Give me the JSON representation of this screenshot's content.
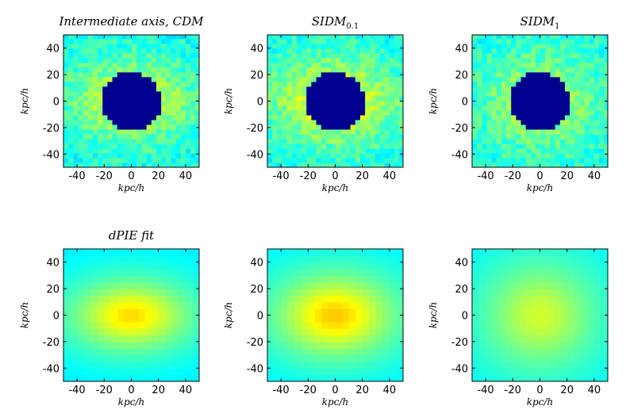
{
  "chart_data": [
    {
      "type": "heatmap",
      "title": "Intermediate axis, CDM",
      "title_sub": "",
      "xlabel": "kpc/h",
      "ylabel": "kpc/h",
      "xlim": [
        -50,
        50
      ],
      "ylim": [
        -50,
        50
      ],
      "xticks": [
        -40,
        -20,
        0,
        20,
        40
      ],
      "yticks": [
        40,
        20,
        0,
        -20,
        -40
      ],
      "colormap": "jet",
      "masked_core_radius": 22,
      "masked_color": "#00008f",
      "noise": true,
      "ellipticity": 0.35,
      "peak_level": 0.62,
      "edge_level": 0.33
    },
    {
      "type": "heatmap",
      "title": "SIDM",
      "title_sub": "0.1",
      "xlabel": "kpc/h",
      "ylabel": "kpc/h",
      "xlim": [
        -50,
        50
      ],
      "ylim": [
        -50,
        50
      ],
      "xticks": [
        -40,
        -20,
        0,
        20,
        40
      ],
      "yticks": [
        40,
        20,
        0,
        -20,
        -40
      ],
      "colormap": "jet",
      "masked_core_radius": 22,
      "masked_color": "#00008f",
      "noise": true,
      "ellipticity": 0.3,
      "peak_level": 0.64,
      "edge_level": 0.33
    },
    {
      "type": "heatmap",
      "title": "SIDM",
      "title_sub": "1",
      "xlabel": "kpc/h",
      "ylabel": "kpc/h",
      "xlim": [
        -50,
        50
      ],
      "ylim": [
        -50,
        50
      ],
      "xticks": [
        -40,
        -20,
        0,
        20,
        40
      ],
      "yticks": [
        40,
        20,
        0,
        -20,
        -40
      ],
      "colormap": "jet",
      "masked_core_radius": 22,
      "masked_color": "#00008f",
      "noise": true,
      "ellipticity": 0.1,
      "peak_level": 0.56,
      "edge_level": 0.34
    },
    {
      "type": "heatmap",
      "title": "dPIE fit",
      "title_sub": "",
      "xlabel": "kpc/h",
      "ylabel": "kpc/h",
      "xlim": [
        -50,
        50
      ],
      "ylim": [
        -50,
        50
      ],
      "xticks": [
        -40,
        -20,
        0,
        20,
        40
      ],
      "yticks": [
        40,
        20,
        0,
        -20,
        -40
      ],
      "colormap": "jet",
      "masked_core_radius": 0,
      "masked_color": "#00008f",
      "noise": false,
      "ellipticity": 0.4,
      "peak_level": 0.66,
      "edge_level": 0.3
    },
    {
      "type": "heatmap",
      "title": "",
      "title_sub": "",
      "xlabel": "kpc/h",
      "ylabel": "kpc/h",
      "xlim": [
        -50,
        50
      ],
      "ylim": [
        -50,
        50
      ],
      "xticks": [
        -40,
        -20,
        0,
        20,
        40
      ],
      "yticks": [
        40,
        20,
        0,
        -20,
        -40
      ],
      "colormap": "jet",
      "masked_core_radius": 0,
      "masked_color": "#00008f",
      "noise": false,
      "ellipticity": 0.3,
      "peak_level": 0.68,
      "edge_level": 0.3
    },
    {
      "type": "heatmap",
      "title": "",
      "title_sub": "",
      "xlabel": "kpc/h",
      "ylabel": "kpc/h",
      "xlim": [
        -50,
        50
      ],
      "ylim": [
        -50,
        50
      ],
      "xticks": [
        -40,
        -20,
        0,
        20,
        40
      ],
      "yticks": [
        40,
        20,
        0,
        -20,
        -40
      ],
      "colormap": "jet",
      "masked_core_radius": 0,
      "masked_color": "#00008f",
      "noise": false,
      "ellipticity": 0.05,
      "peak_level": 0.58,
      "edge_level": 0.32
    }
  ]
}
